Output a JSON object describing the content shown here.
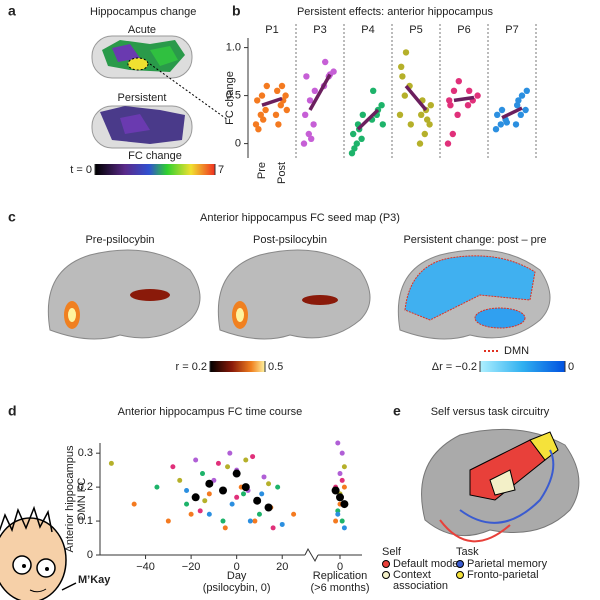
{
  "figure": {
    "a": {
      "letter": "a",
      "title": "Hippocampus change",
      "labels": [
        "Acute",
        "Persistent"
      ],
      "colorbar": {
        "label": "FC change",
        "lim": [
          0,
          7
        ],
        "ticks": [
          {
            "value": 0,
            "label": "t = 0"
          },
          7
        ]
      }
    },
    "b": {
      "letter": "b"
    },
    "c": {
      "letter": "c",
      "title": "Anterior hippocampus FC seed map (P3)",
      "labels": [
        "Pre-psilocybin",
        "Post-psilocybin",
        "Persistent change: post – pre"
      ],
      "colorbars": [
        {
          "lim": [
            0.2,
            0.5
          ],
          "ticks": [
            {
              "value": 0.2,
              "label": "r = 0.2"
            },
            0.5
          ]
        },
        {
          "lim": [
            -0.2,
            0
          ],
          "ticks": [
            {
              "value": -0.2,
              "label": "Δr = −0.2"
            },
            0
          ]
        }
      ],
      "legend": "DMN"
    },
    "d": {
      "letter": "d"
    },
    "e": {
      "letter": "e",
      "title": "Self versus task circuitry",
      "groups": [
        {
          "name": "Self",
          "items": [
            {
              "label": "Default mode",
              "color": "#e8403a"
            },
            {
              "label": [
                "Context",
                "association"
              ],
              "color": "#f3f0c8"
            }
          ]
        },
        {
          "name": "Task",
          "items": [
            {
              "label": "Parietal memory",
              "color": "#3a5bd0"
            },
            {
              "label": "Fronto-parietal",
              "color": "#f5e23a"
            }
          ]
        }
      ]
    },
    "meme": {
      "caption": "M’Kay"
    }
  },
  "chart_data": [
    {
      "type": "strip",
      "title": "Persistent effects: anterior hippocampus",
      "ylabel": "FC change",
      "categories": [
        "Pre",
        "Post"
      ],
      "ylim": [
        -0.15,
        1.1
      ],
      "yticks": [
        0,
        0.5,
        {
          "value": 1,
          "label": "1.0"
        }
      ],
      "mean_color": "#6b1f5e",
      "series": [
        {
          "name": "P1",
          "color": "#f47a20",
          "pre": [
            0.2,
            0.3,
            0.35,
            0.45,
            0.5,
            0.6,
            0.15,
            0.25
          ],
          "post": [
            0.3,
            0.4,
            0.5,
            0.55,
            0.6,
            0.35,
            0.2,
            0.45
          ],
          "mean": [
            0.4,
            0.47
          ]
        },
        {
          "name": "P3",
          "color": "#c65fd6",
          "pre": [
            0,
            0.1,
            0.2,
            0.3,
            0.45,
            0.55,
            0.7,
            0.05
          ],
          "post": [
            0.6,
            0.7,
            0.75,
            0.85,
            0.72
          ],
          "mean": [
            0.35,
            0.72
          ]
        },
        {
          "name": "P4",
          "color": "#1db36a",
          "pre": [
            -0.1,
            0,
            0.05,
            0.1,
            0.2,
            0.3,
            -0.05,
            0.15
          ],
          "post": [
            0.25,
            0.3,
            0.4,
            0.55,
            0.35,
            0.2
          ],
          "mean": [
            0.15,
            0.35
          ]
        },
        {
          "name": "P5",
          "color": "#b5b02a",
          "pre": [
            0.3,
            0.5,
            0.6,
            0.8,
            0.95,
            0.2,
            0.7
          ],
          "post": [
            0,
            0.1,
            0.2,
            0.3,
            0.35,
            0.4,
            0.45,
            0.25
          ],
          "mean": [
            0.6,
            0.35
          ]
        },
        {
          "name": "P6",
          "color": "#e0307a",
          "pre": [
            0,
            0.1,
            0.3,
            0.45,
            0.55,
            0.65,
            0.4
          ],
          "post": [
            0.4,
            0.45,
            0.5,
            0.55
          ],
          "mean": [
            0.45,
            0.48
          ]
        },
        {
          "name": "P7",
          "color": "#2b8fe0",
          "pre": [
            0.15,
            0.2,
            0.25,
            0.3,
            0.35,
            0.22
          ],
          "post": [
            0.2,
            0.3,
            0.35,
            0.4,
            0.5,
            0.55,
            0.45
          ],
          "mean": [
            0.27,
            0.37
          ]
        }
      ]
    },
    {
      "type": "scatter",
      "title": "Anterior hippocampus FC time course",
      "ylabel": [
        "Anterior hippocampus",
        "DMN FC"
      ],
      "xlabel": [
        "Day",
        "(psilocybin, 0)"
      ],
      "x2label": [
        "Replication",
        "(>6 months)"
      ],
      "xlim": [
        -60,
        30
      ],
      "xticks": [
        {
          "value": -40,
          "label": "−40"
        },
        {
          "value": -20,
          "label": "−20"
        },
        0,
        20
      ],
      "x2lim": [
        -10,
        10
      ],
      "x2ticks": [
        0
      ],
      "ylim": [
        0,
        0.33
      ],
      "yticks": [
        0,
        0.1,
        0.2,
        0.3
      ],
      "series": [
        {
          "color": "#f47a20",
          "x": [
            -45,
            -30,
            -20,
            -12,
            -5,
            2,
            8,
            15,
            25
          ],
          "values": [
            0.15,
            0.1,
            0.12,
            0.18,
            0.08,
            0.2,
            0.1,
            0.14,
            0.12
          ]
        },
        {
          "color": "#f47a20",
          "axis": "x2",
          "x": [
            -2,
            0,
            2
          ],
          "values": [
            0.1,
            0.15,
            0.2
          ]
        },
        {
          "color": "#b05fd6",
          "x": [
            -18,
            -10,
            -3,
            0,
            5,
            12
          ],
          "values": [
            0.28,
            0.22,
            0.3,
            0.25,
            0.19,
            0.23
          ]
        },
        {
          "color": "#b05fd6",
          "axis": "x2",
          "x": [
            -1,
            1,
            0
          ],
          "values": [
            0.33,
            0.3,
            0.24
          ]
        },
        {
          "color": "#1db36a",
          "x": [
            -35,
            -22,
            -15,
            -6,
            3,
            10,
            18
          ],
          "values": [
            0.2,
            0.15,
            0.24,
            0.1,
            0.18,
            0.12,
            0.2
          ]
        },
        {
          "color": "#1db36a",
          "axis": "x2",
          "x": [
            -1,
            1
          ],
          "values": [
            0.13,
            0.1
          ]
        },
        {
          "color": "#b5b02a",
          "x": [
            -55,
            -25,
            -14,
            -4,
            4,
            14
          ],
          "values": [
            0.27,
            0.22,
            0.16,
            0.26,
            0.28,
            0.21
          ]
        },
        {
          "color": "#b5b02a",
          "axis": "x2",
          "x": [
            0,
            2
          ],
          "values": [
            0.18,
            0.26
          ]
        },
        {
          "color": "#e0307a",
          "x": [
            -28,
            -16,
            -8,
            0,
            7,
            16
          ],
          "values": [
            0.26,
            0.13,
            0.27,
            0.17,
            0.29,
            0.08
          ]
        },
        {
          "color": "#e0307a",
          "axis": "x2",
          "x": [
            1,
            -2
          ],
          "values": [
            0.22,
            0.2
          ]
        },
        {
          "color": "#2b8fe0",
          "x": [
            -22,
            -12,
            -2,
            6,
            11,
            20
          ],
          "values": [
            0.19,
            0.12,
            0.15,
            0.1,
            0.18,
            0.09
          ]
        },
        {
          "color": "#2b8fe0",
          "axis": "x2",
          "x": [
            -1,
            2
          ],
          "values": [
            0.12,
            0.08
          ]
        },
        {
          "color": "#000000",
          "x": [
            -18,
            -12,
            -6,
            0,
            4,
            9,
            14
          ],
          "values": [
            0.17,
            0.21,
            0.19,
            0.24,
            0.2,
            0.16,
            0.14
          ]
        },
        {
          "color": "#000000",
          "axis": "x2",
          "x": [
            -2,
            0,
            2
          ],
          "values": [
            0.19,
            0.17,
            0.15
          ]
        }
      ]
    }
  ]
}
